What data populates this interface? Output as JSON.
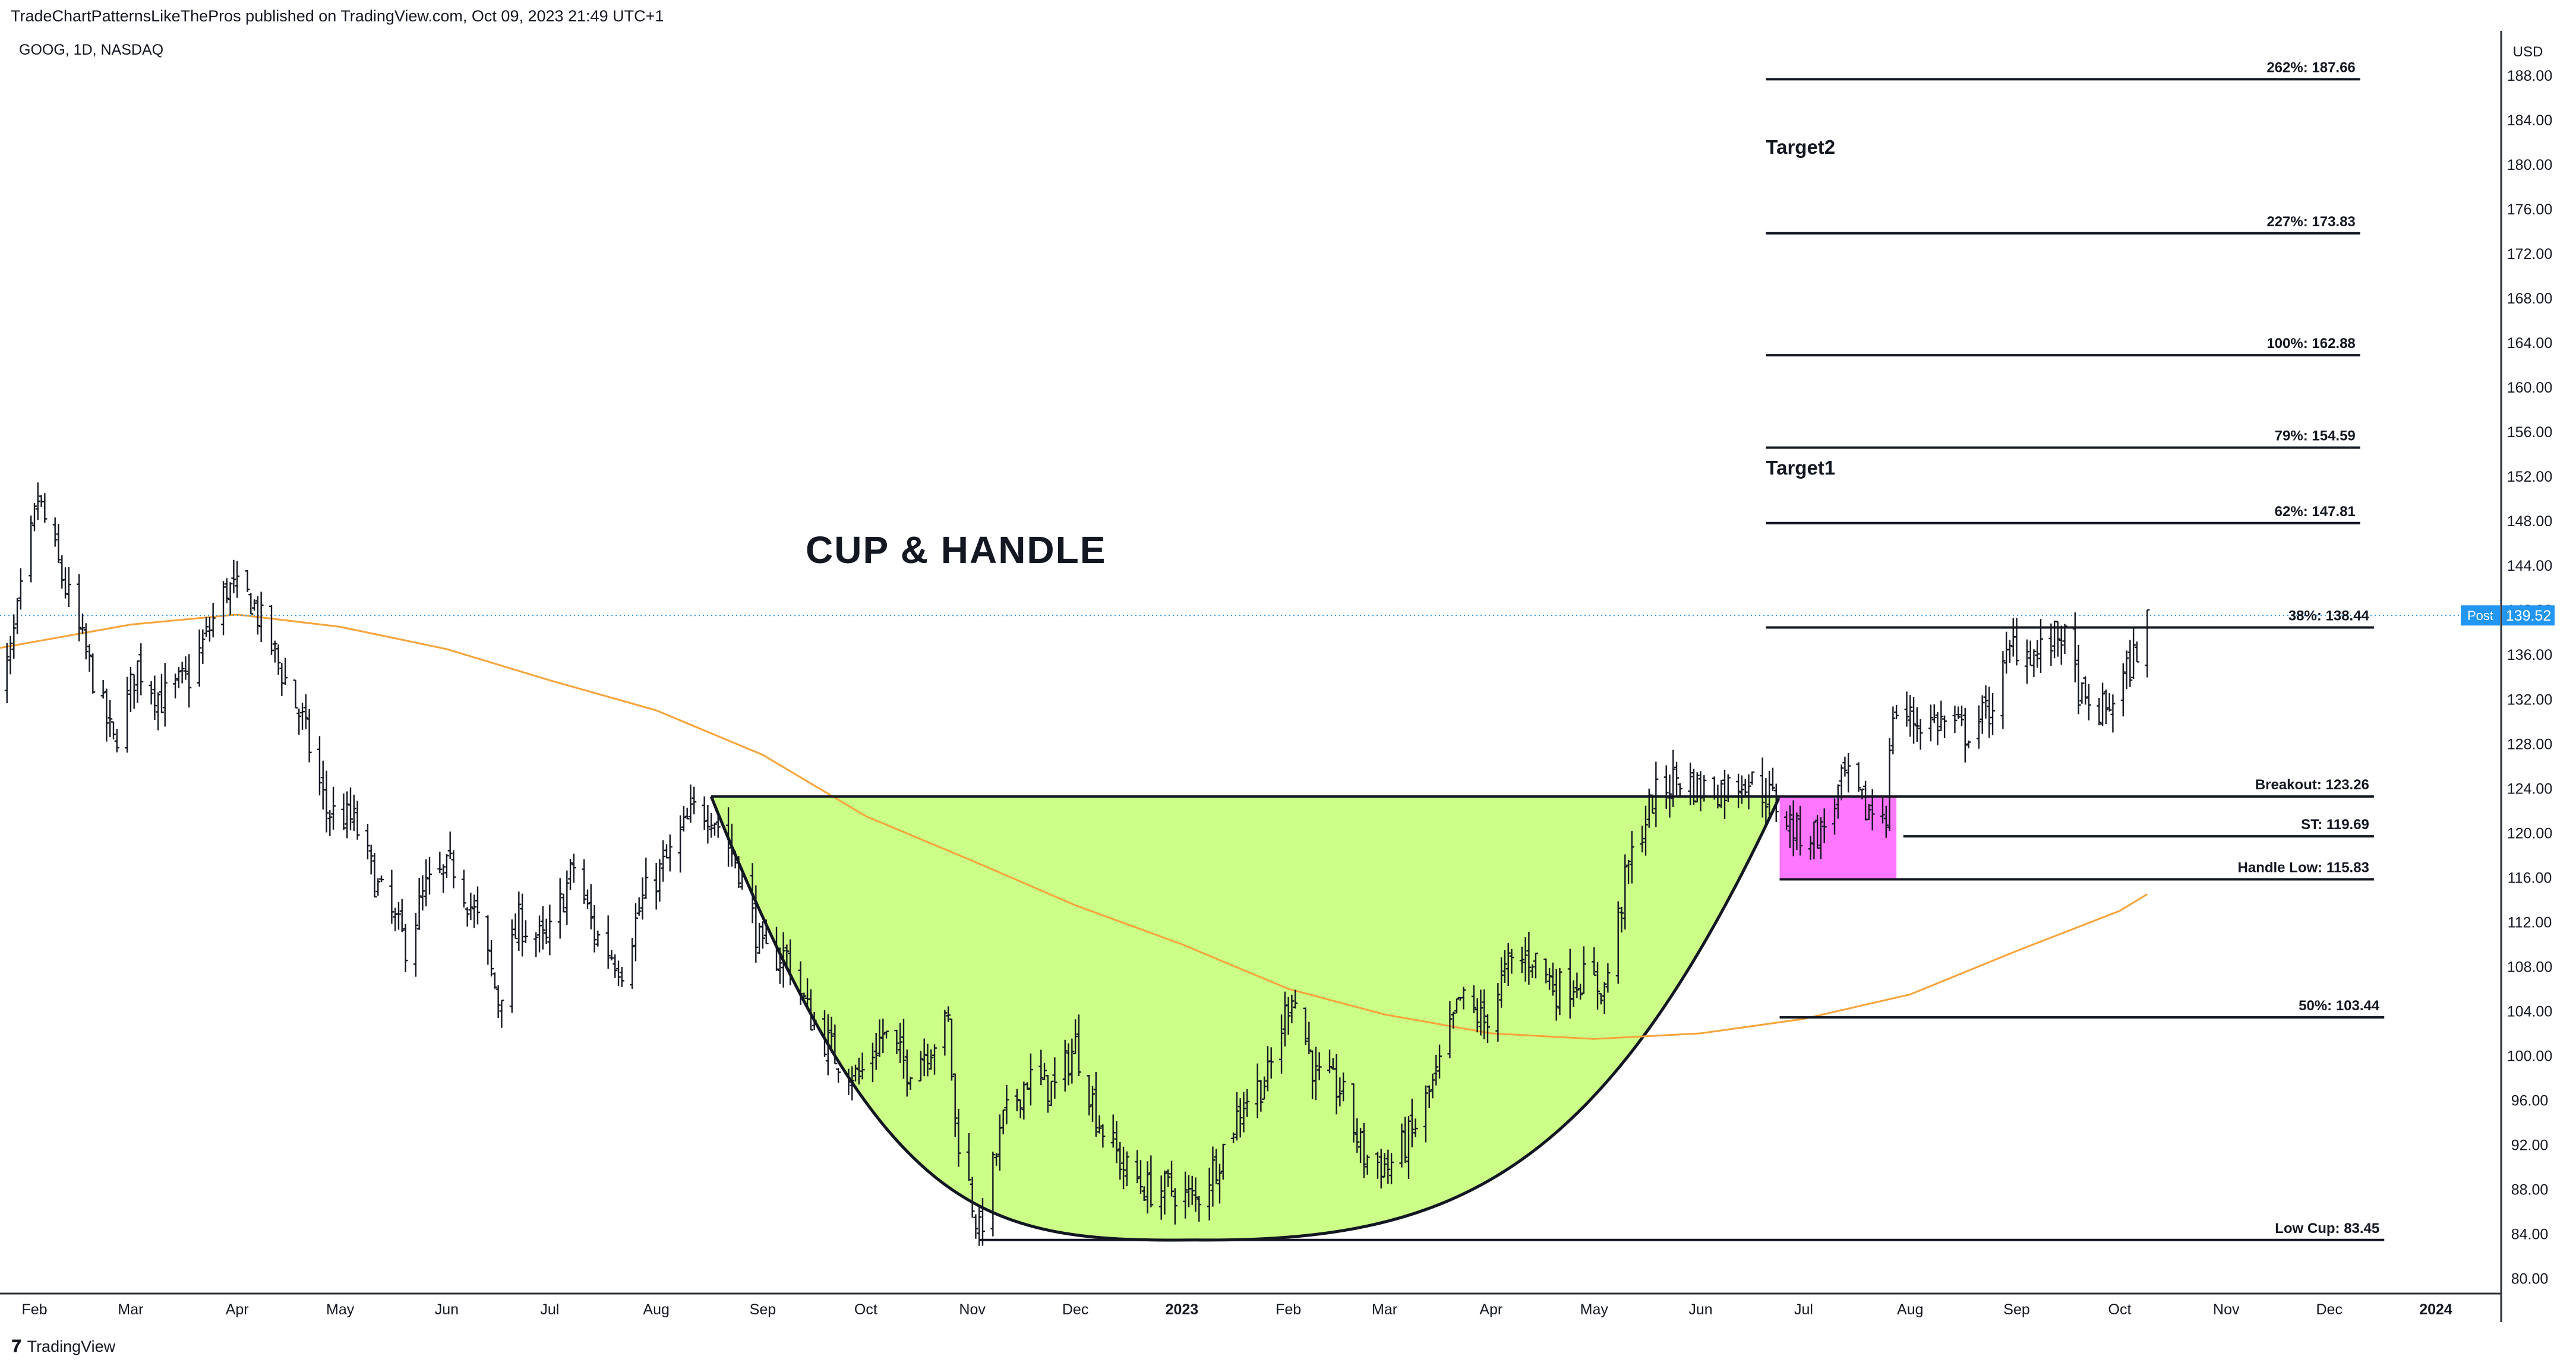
{
  "header": {
    "publisher": "TradeChartPatternsLikeThePros published on TradingView.com, Oct 09, 2023 21:49 UTC+1",
    "symbol": "GOOG, 1D, NASDAQ",
    "currency": "USD"
  },
  "footer": {
    "brand": "TradingView",
    "logo_icon": "tradingview-logo-icon"
  },
  "colors": {
    "cup_fill": "#ccff88",
    "handle_fill": "#ff77ff",
    "moving_average": "#f7a33a",
    "price_tag": "#2196f3",
    "bars": "#131722"
  },
  "chart_data": {
    "type": "ohlc",
    "title": "CUP & HANDLE",
    "ylim": [
      78,
      192
    ],
    "yticks": [
      "188.00",
      "184.00",
      "180.00",
      "176.00",
      "172.00",
      "168.00",
      "164.00",
      "160.00",
      "156.00",
      "152.00",
      "148.00",
      "144.00",
      "140.00",
      "136.00",
      "132.00",
      "128.00",
      "124.00",
      "120.00",
      "116.00",
      "112.00",
      "108.00",
      "104.00",
      "100.00",
      "96.00",
      "92.00",
      "88.00",
      "84.00",
      "80.00"
    ],
    "xticks": [
      "Feb",
      "Mar",
      "Apr",
      "May",
      "Jun",
      "Jul",
      "Aug",
      "Sep",
      "Oct",
      "Nov",
      "Dec",
      "2023",
      "Feb",
      "Mar",
      "Apr",
      "May",
      "Jun",
      "Jul",
      "Aug",
      "Sep",
      "Oct",
      "Nov",
      "Dec",
      "2024"
    ],
    "xtick_dates": [
      "2022-02-01",
      "2022-03-01",
      "2022-04-01",
      "2022-05-01",
      "2022-06-01",
      "2022-07-01",
      "2022-08-01",
      "2022-09-01",
      "2022-10-01",
      "2022-11-01",
      "2022-12-01",
      "2023-01-01",
      "2023-02-01",
      "2023-03-01",
      "2023-04-01",
      "2023-05-01",
      "2023-06-01",
      "2023-07-01",
      "2023-08-01",
      "2023-09-01",
      "2023-10-01",
      "2023-11-01",
      "2023-12-01",
      "2024-01-01"
    ],
    "price_path": [
      [
        "2022-01-20",
        131
      ],
      [
        "2022-01-25",
        136
      ],
      [
        "2022-02-02",
        150
      ],
      [
        "2022-02-10",
        142
      ],
      [
        "2022-02-18",
        134
      ],
      [
        "2022-02-24",
        128
      ],
      [
        "2022-03-03",
        135
      ],
      [
        "2022-03-10",
        132
      ],
      [
        "2022-03-18",
        134
      ],
      [
        "2022-03-29",
        142
      ],
      [
        "2022-04-05",
        141
      ],
      [
        "2022-04-12",
        136
      ],
      [
        "2022-04-20",
        130
      ],
      [
        "2022-04-27",
        122
      ],
      [
        "2022-05-05",
        121
      ],
      [
        "2022-05-12",
        115
      ],
      [
        "2022-05-20",
        110
      ],
      [
        "2022-05-26",
        115
      ],
      [
        "2022-06-03",
        117
      ],
      [
        "2022-06-10",
        112
      ],
      [
        "2022-06-16",
        105
      ],
      [
        "2022-06-22",
        112
      ],
      [
        "2022-06-30",
        110
      ],
      [
        "2022-07-08",
        117
      ],
      [
        "2022-07-14",
        111
      ],
      [
        "2022-07-22",
        108
      ],
      [
        "2022-07-28",
        114
      ],
      [
        "2022-08-05",
        118
      ],
      [
        "2022-08-12",
        122
      ],
      [
        "2022-08-17",
        122
      ],
      [
        "2022-08-25",
        117
      ],
      [
        "2022-09-01",
        109
      ],
      [
        "2022-09-08",
        109
      ],
      [
        "2022-09-14",
        104
      ],
      [
        "2022-09-22",
        100
      ],
      [
        "2022-09-29",
        98
      ],
      [
        "2022-10-06",
        102
      ],
      [
        "2022-10-13",
        99
      ],
      [
        "2022-10-20",
        101
      ],
      [
        "2022-10-25",
        103
      ],
      [
        "2022-10-27",
        94
      ],
      [
        "2022-11-03",
        84
      ],
      [
        "2022-11-10",
        94
      ],
      [
        "2022-11-17",
        98
      ],
      [
        "2022-11-25",
        97
      ],
      [
        "2022-12-01",
        101
      ],
      [
        "2022-12-08",
        94
      ],
      [
        "2022-12-15",
        90
      ],
      [
        "2022-12-22",
        88
      ],
      [
        "2022-12-29",
        88
      ],
      [
        "2023-01-05",
        87
      ],
      [
        "2023-01-12",
        91
      ],
      [
        "2023-01-19",
        96
      ],
      [
        "2023-01-26",
        98
      ],
      [
        "2023-02-02",
        106
      ],
      [
        "2023-02-09",
        98
      ],
      [
        "2023-02-16",
        97
      ],
      [
        "2023-02-23",
        91
      ],
      [
        "2023-03-02",
        90
      ],
      [
        "2023-03-09",
        93
      ],
      [
        "2023-03-16",
        98
      ],
      [
        "2023-03-23",
        105
      ],
      [
        "2023-03-30",
        103
      ],
      [
        "2023-04-06",
        108
      ],
      [
        "2023-04-13",
        109
      ],
      [
        "2023-04-20",
        106
      ],
      [
        "2023-04-27",
        107
      ],
      [
        "2023-05-04",
        106
      ],
      [
        "2023-05-11",
        117
      ],
      [
        "2023-05-18",
        123
      ],
      [
        "2023-05-25",
        125
      ],
      [
        "2023-06-01",
        124
      ],
      [
        "2023-06-08",
        124
      ],
      [
        "2023-06-14",
        125
      ],
      [
        "2023-06-22",
        123
      ],
      [
        "2023-06-29",
        120
      ],
      [
        "2023-07-06",
        120
      ],
      [
        "2023-07-13",
        125
      ],
      [
        "2023-07-19",
        122
      ],
      [
        "2023-07-25",
        122
      ],
      [
        "2023-07-27",
        131
      ],
      [
        "2023-08-03",
        130
      ],
      [
        "2023-08-10",
        130
      ],
      [
        "2023-08-17",
        129
      ],
      [
        "2023-08-24",
        131
      ],
      [
        "2023-08-31",
        137
      ],
      [
        "2023-09-07",
        136
      ],
      [
        "2023-09-14",
        138
      ],
      [
        "2023-09-21",
        131
      ],
      [
        "2023-09-27",
        131
      ],
      [
        "2023-10-04",
        135
      ],
      [
        "2023-10-09",
        139
      ]
    ],
    "moving_average": [
      [
        "2022-01-20",
        136.5
      ],
      [
        "2022-03-01",
        138.7
      ],
      [
        "2022-04-01",
        139.6
      ],
      [
        "2022-05-01",
        138.5
      ],
      [
        "2022-06-01",
        136.5
      ],
      [
        "2022-07-01",
        133.7
      ],
      [
        "2022-08-01",
        131
      ],
      [
        "2022-09-01",
        127
      ],
      [
        "2022-10-01",
        121.5
      ],
      [
        "2022-11-01",
        117.5
      ],
      [
        "2022-12-01",
        113.5
      ],
      [
        "2023-01-01",
        110
      ],
      [
        "2023-02-01",
        106
      ],
      [
        "2023-03-01",
        103.7
      ],
      [
        "2023-04-01",
        102
      ],
      [
        "2023-05-01",
        101.5
      ],
      [
        "2023-06-01",
        102
      ],
      [
        "2023-07-01",
        103.3
      ],
      [
        "2023-08-01",
        105.5
      ],
      [
        "2023-09-01",
        109.4
      ],
      [
        "2023-10-01",
        113
      ],
      [
        "2023-10-09",
        114.5
      ]
    ],
    "cup": {
      "rim_left": [
        "2022-08-17",
        123.26
      ],
      "bottom": [
        "2023-01-05",
        83.45
      ],
      "rim_right": [
        "2023-06-24",
        123.26
      ]
    },
    "handle_box": {
      "x": [
        "2023-06-24",
        "2023-07-28"
      ],
      "y": [
        115.83,
        123.26
      ]
    },
    "current_price": {
      "value": 139.52,
      "label": "139.52",
      "tag": "Post"
    },
    "levels": [
      {
        "label": "262%: 187.66",
        "value": 187.66,
        "x": [
          "2023-06-20",
          "2023-12-10"
        ]
      },
      {
        "label": "227%: 173.83",
        "value": 173.83,
        "x": [
          "2023-06-20",
          "2023-12-10"
        ]
      },
      {
        "label": "100%: 162.88",
        "value": 162.88,
        "x": [
          "2023-06-20",
          "2023-12-10"
        ]
      },
      {
        "label": "79%: 154.59",
        "value": 154.59,
        "x": [
          "2023-06-20",
          "2023-12-10"
        ]
      },
      {
        "label": "62%: 147.81",
        "value": 147.81,
        "x": [
          "2023-06-20",
          "2023-12-10"
        ]
      },
      {
        "label": "38%: 138.44",
        "value": 138.44,
        "x": [
          "2023-06-20",
          "2023-12-14"
        ]
      },
      {
        "label": "Breakout: 123.26",
        "value": 123.26,
        "x": [
          "2022-08-17",
          "2023-12-14"
        ]
      },
      {
        "label": "ST: 119.69",
        "value": 119.69,
        "x": [
          "2023-07-30",
          "2023-12-14"
        ]
      },
      {
        "label": "Handle Low: 115.83",
        "value": 115.83,
        "x": [
          "2023-06-24",
          "2023-12-14"
        ]
      },
      {
        "label": "50%: 103.44",
        "value": 103.44,
        "x": [
          "2023-06-24",
          "2023-12-17"
        ]
      },
      {
        "label": "Low Cup: 83.45",
        "value": 83.45,
        "x": [
          "2022-11-03",
          "2023-12-17"
        ]
      }
    ],
    "annotations": [
      {
        "text": "Target2",
        "x": "2023-06-20",
        "y": 181.5
      },
      {
        "text": "Target1",
        "x": "2023-06-20",
        "y": 152.7
      }
    ]
  }
}
